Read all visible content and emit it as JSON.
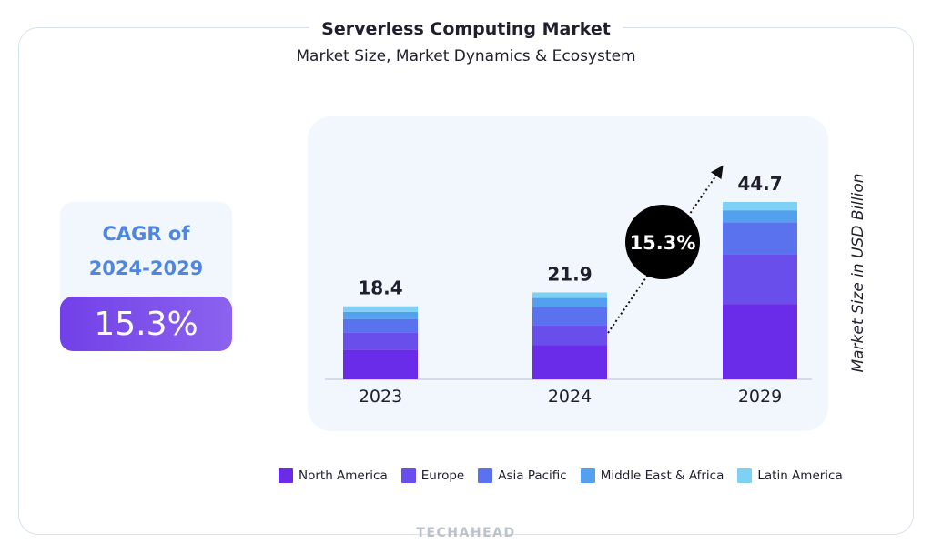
{
  "title": "Serverless Computing Market",
  "subtitle": "Market Size, Market Dynamics & Ecosystem",
  "cagr": {
    "label_line1": "CAGR of",
    "label_line2": "2024-2029",
    "value": "15.3%"
  },
  "brand": "TECHAHEAD",
  "colors": {
    "north_america": "#6a2ce8",
    "europe": "#6a4eec",
    "asia_pacific": "#5b72ee",
    "middle_east_africa": "#53a0ef",
    "latin_america": "#7fd0f5",
    "growth_badge": "#000000",
    "accent_text": "#4f86e0"
  },
  "chart_data": {
    "type": "bar",
    "stacked": true,
    "categories": [
      "2023",
      "2024",
      "2029"
    ],
    "totals": [
      18.4,
      21.9,
      44.7
    ],
    "total_labels": [
      "18.4",
      "21.9",
      "44.7"
    ],
    "series": [
      {
        "name": "North America",
        "color": "#6a2ce8",
        "values": [
          7.5,
          8.6,
          19.0
        ]
      },
      {
        "name": "Europe",
        "color": "#6a4eec",
        "values": [
          4.2,
          5.1,
          12.5
        ]
      },
      {
        "name": "Asia Pacific",
        "color": "#5b72ee",
        "values": [
          3.5,
          4.6,
          8.1
        ]
      },
      {
        "name": "Middle East & Africa",
        "color": "#53a0ef",
        "values": [
          1.8,
          2.2,
          3.0
        ]
      },
      {
        "name": "Latin America",
        "color": "#7fd0f5",
        "values": [
          1.4,
          1.4,
          2.1
        ]
      }
    ],
    "ylabel": "Market Size in USD Billion",
    "ylim": [
      0,
      50
    ],
    "growth_annotation": "15.3%",
    "growth_from": "2024",
    "growth_to": "2029"
  }
}
